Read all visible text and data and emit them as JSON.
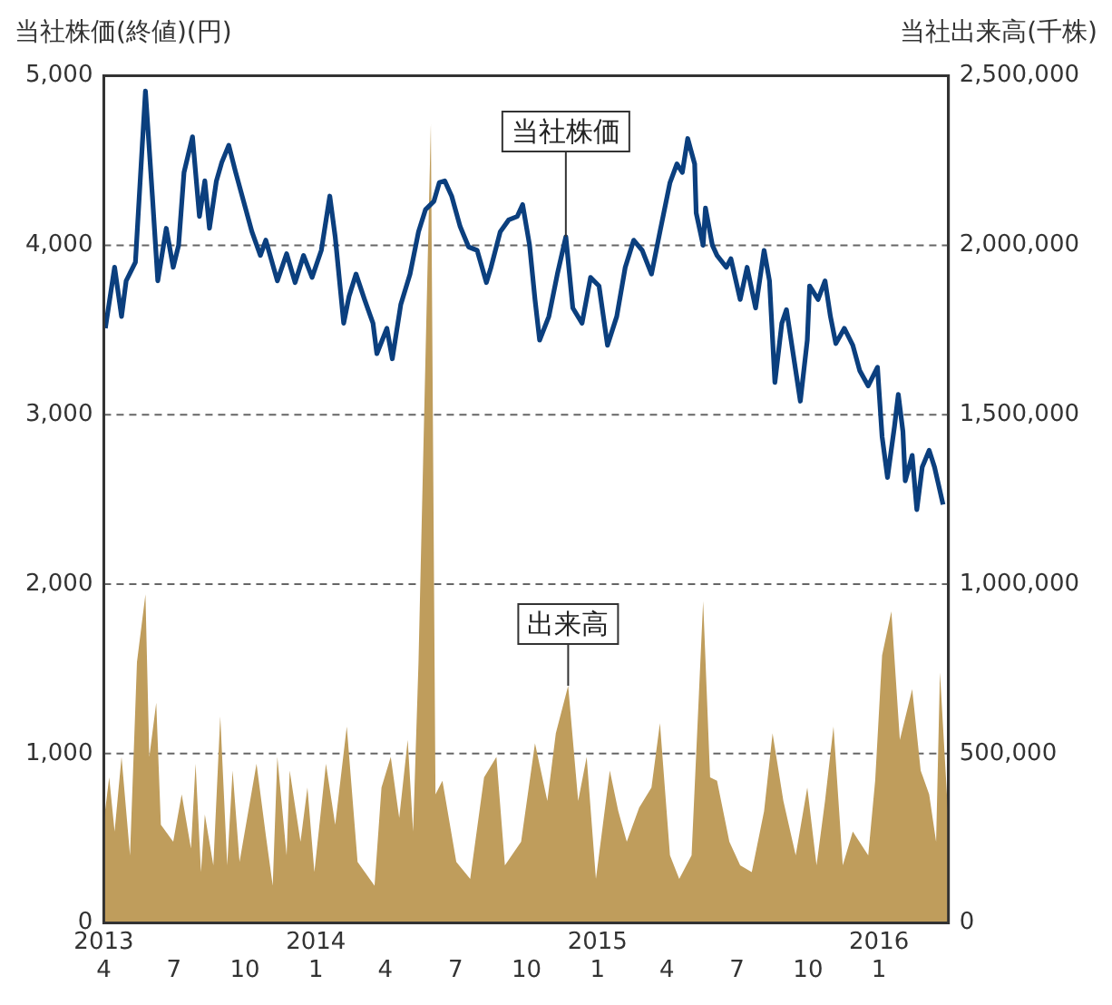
{
  "chart_data": {
    "type": "line",
    "ylabel": "当社株価(終値)(円)",
    "y2label": "当社出来高(千株)",
    "xlim": [
      "2013-04-01",
      "2016-03-31"
    ],
    "xticks": [
      {
        "value": "2013-04-01",
        "label": "2013\n4"
      },
      {
        "value": "2013-07-01",
        "label": "7"
      },
      {
        "value": "2013-10-01",
        "label": "10"
      },
      {
        "value": "2014-01-01",
        "label": "2014\n1"
      },
      {
        "value": "2014-04-01",
        "label": "4"
      },
      {
        "value": "2014-07-01",
        "label": "7"
      },
      {
        "value": "2014-10-01",
        "label": "10"
      },
      {
        "value": "2015-01-01",
        "label": "2015\n1"
      },
      {
        "value": "2015-04-01",
        "label": "4"
      },
      {
        "value": "2015-07-01",
        "label": "7"
      },
      {
        "value": "2015-10-01",
        "label": "10"
      },
      {
        "value": "2016-01-01",
        "label": "2016\n1"
      }
    ],
    "ylim": [
      0,
      5000
    ],
    "yticks": [
      0,
      {
        "value": 1000,
        "label": "1,000"
      },
      {
        "value": 2000,
        "label": "2,000"
      },
      {
        "value": 3000,
        "label": "3,000"
      },
      {
        "value": 4000,
        "label": "4,000"
      },
      {
        "value": 5000,
        "label": "5,000"
      }
    ],
    "y2lim": [
      0,
      2500000
    ],
    "y2ticks": [
      0,
      {
        "value": 500000,
        "label": "500,000"
      },
      {
        "value": 1000000,
        "label": "1,000,000"
      },
      {
        "value": 1500000,
        "label": "1,500,000"
      },
      {
        "value": 2000000,
        "label": "2,000,000"
      },
      {
        "value": 2500000,
        "label": "2,500,000"
      }
    ],
    "grid": "y",
    "annotations": [
      {
        "text": "当社株価",
        "x": "2014-11-21",
        "y": 4050
      },
      {
        "text": "出来高",
        "x": "2014-11-24",
        "y": 1400
      }
    ],
    "series": [
      {
        "type": "line",
        "color": "#0b3f7e",
        "x": [
          "2013-04-03",
          "2013-04-15",
          "2013-04-24",
          "2013-04-30",
          "2013-05-12",
          "2013-05-25",
          "2013-06-03",
          "2013-06-10",
          "2013-06-21",
          "2013-06-30",
          "2013-07-07",
          "2013-07-14",
          "2013-07-25",
          "2013-08-03",
          "2013-08-10",
          "2013-08-16",
          "2013-08-25",
          "2013-09-01",
          "2013-09-10",
          "2013-09-19",
          "2013-10-10",
          "2013-10-21",
          "2013-10-28",
          "2013-11-12",
          "2013-11-24",
          "2013-12-05",
          "2013-12-16",
          "2013-12-27",
          "2014-01-08",
          "2014-01-19",
          "2014-01-26",
          "2014-02-06",
          "2014-02-13",
          "2014-02-22",
          "2014-03-05",
          "2014-03-16",
          "2014-03-21",
          "2014-04-03",
          "2014-04-10",
          "2014-04-21",
          "2014-05-03",
          "2014-05-14",
          "2014-05-23",
          "2014-06-03",
          "2014-06-10",
          "2014-06-17",
          "2014-06-26",
          "2014-07-07",
          "2014-07-18",
          "2014-07-29",
          "2014-08-10",
          "2014-08-16",
          "2014-08-28",
          "2014-09-08",
          "2014-09-19",
          "2014-09-26",
          "2014-10-05",
          "2014-10-12",
          "2014-10-18",
          "2014-10-30",
          "2014-11-10",
          "2014-11-21",
          "2014-11-30",
          "2014-12-12",
          "2014-12-23",
          "2015-01-03",
          "2015-01-14",
          "2015-01-26",
          "2015-02-06",
          "2015-02-17",
          "2015-02-28",
          "2015-03-12",
          "2015-03-23",
          "2015-04-05",
          "2015-04-14",
          "2015-04-21",
          "2015-04-28",
          "2015-05-07",
          "2015-05-09",
          "2015-05-18",
          "2015-05-21",
          "2015-05-30",
          "2015-06-05",
          "2015-06-17",
          "2015-06-23",
          "2015-07-05",
          "2015-07-14",
          "2015-07-25",
          "2015-08-05",
          "2015-08-12",
          "2015-08-19",
          "2015-08-28",
          "2015-09-03",
          "2015-09-10",
          "2015-09-21",
          "2015-09-30",
          "2015-10-03",
          "2015-10-14",
          "2015-10-23",
          "2015-10-30",
          "2015-11-06",
          "2015-11-17",
          "2015-11-28",
          "2015-12-07",
          "2015-12-18",
          "2015-12-30",
          "2016-01-05",
          "2016-01-12",
          "2016-01-21",
          "2016-01-26",
          "2016-02-01",
          "2016-02-04",
          "2016-02-13",
          "2016-02-19",
          "2016-02-26",
          "2016-03-06",
          "2016-03-13",
          "2016-03-20",
          "2016-03-24"
        ],
        "values": [
          3510,
          3870,
          3580,
          3790,
          3900,
          4910,
          4290,
          3790,
          4100,
          3870,
          4000,
          4430,
          4640,
          4170,
          4380,
          4100,
          4380,
          4490,
          4590,
          4430,
          4080,
          3940,
          4030,
          3790,
          3950,
          3780,
          3940,
          3810,
          3970,
          4290,
          4050,
          3540,
          3700,
          3830,
          3680,
          3540,
          3360,
          3510,
          3330,
          3650,
          3830,
          4080,
          4210,
          4260,
          4370,
          4380,
          4290,
          4110,
          3990,
          3970,
          3780,
          3870,
          4080,
          4150,
          4170,
          4240,
          4000,
          3680,
          3440,
          3580,
          3830,
          4050,
          3630,
          3540,
          3810,
          3760,
          3410,
          3580,
          3870,
          4030,
          3970,
          3830,
          4080,
          4370,
          4480,
          4430,
          4630,
          4480,
          4190,
          4000,
          4220,
          4000,
          3940,
          3870,
          3920,
          3680,
          3870,
          3630,
          3970,
          3790,
          3190,
          3540,
          3620,
          3410,
          3080,
          3440,
          3760,
          3680,
          3790,
          3580,
          3420,
          3510,
          3410,
          3260,
          3170,
          3280,
          2870,
          2630,
          2930,
          3120,
          2900,
          2610,
          2760,
          2440,
          2690,
          2790,
          2690,
          2550,
          2470
        ]
      },
      {
        "type": "area",
        "axis": "y2",
        "color": "#bf9d5c",
        "x": [
          "2013-04-01",
          "2013-04-08",
          "2013-04-15",
          "2013-04-24",
          "2013-05-05",
          "2013-05-14",
          "2013-05-25",
          "2013-05-30",
          "2013-06-08",
          "2013-06-14",
          "2013-06-30",
          "2013-07-11",
          "2013-07-23",
          "2013-07-29",
          "2013-08-05",
          "2013-08-10",
          "2013-08-21",
          "2013-08-30",
          "2013-09-08",
          "2013-09-15",
          "2013-09-24",
          "2013-10-16",
          "2013-10-28",
          "2013-11-06",
          "2013-11-12",
          "2013-11-24",
          "2013-11-28",
          "2013-12-12",
          "2013-12-21",
          "2013-12-30",
          "2014-01-14",
          "2014-01-26",
          "2014-02-10",
          "2014-02-24",
          "2014-03-18",
          "2014-03-27",
          "2014-04-08",
          "2014-04-19",
          "2014-04-30",
          "2014-05-07",
          "2014-05-14",
          "2014-05-30",
          "2014-06-05",
          "2014-06-14",
          "2014-07-02",
          "2014-07-20",
          "2014-08-07",
          "2014-08-23",
          "2014-09-03",
          "2014-09-24",
          "2014-10-12",
          "2014-10-28",
          "2014-11-08",
          "2014-11-24",
          "2014-12-07",
          "2014-12-18",
          "2014-12-30",
          "2015-01-17",
          "2015-01-28",
          "2015-02-08",
          "2015-02-24",
          "2015-03-12",
          "2015-03-23",
          "2015-04-05",
          "2015-04-17",
          "2015-05-03",
          "2015-05-18",
          "2015-05-27",
          "2015-06-05",
          "2015-06-21",
          "2015-07-05",
          "2015-07-20",
          "2015-08-05",
          "2015-08-16",
          "2015-08-30",
          "2015-09-15",
          "2015-09-30",
          "2015-10-12",
          "2015-10-23",
          "2015-11-03",
          "2015-11-15",
          "2015-11-28",
          "2015-12-18",
          "2015-12-27",
          "2016-01-05",
          "2016-01-17",
          "2016-01-28",
          "2016-02-13",
          "2016-02-24",
          "2016-03-06",
          "2016-03-15",
          "2016-03-20",
          "2016-03-31"
        ],
        "values": [
          300000,
          430000,
          270000,
          490000,
          200000,
          770000,
          970000,
          490000,
          650000,
          290000,
          240000,
          380000,
          220000,
          470000,
          150000,
          320000,
          170000,
          610000,
          170000,
          450000,
          180000,
          470000,
          260000,
          110000,
          490000,
          200000,
          450000,
          240000,
          400000,
          150000,
          470000,
          290000,
          580000,
          180000,
          110000,
          400000,
          490000,
          310000,
          540000,
          270000,
          770000,
          2360000,
          380000,
          420000,
          180000,
          130000,
          430000,
          490000,
          170000,
          240000,
          530000,
          360000,
          560000,
          700000,
          360000,
          490000,
          130000,
          450000,
          330000,
          240000,
          340000,
          400000,
          590000,
          200000,
          130000,
          200000,
          950000,
          430000,
          420000,
          240000,
          170000,
          150000,
          330000,
          560000,
          360000,
          200000,
          400000,
          170000,
          360000,
          580000,
          170000,
          270000,
          200000,
          420000,
          790000,
          920000,
          540000,
          690000,
          450000,
          380000,
          240000,
          740000,
          300000
        ]
      }
    ]
  }
}
